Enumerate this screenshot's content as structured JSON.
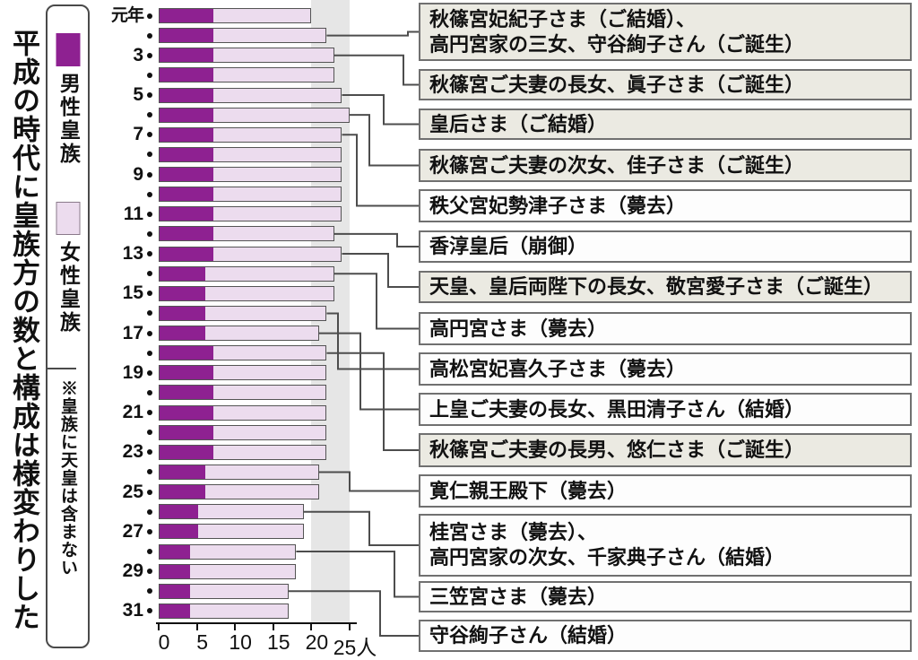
{
  "title": "平成の時代に皇族方の数と構成は様変わりした",
  "legend": {
    "male_label": "男性皇族",
    "female_label": "女性皇族",
    "note": "※皇族に天皇は含まない"
  },
  "colors": {
    "male": "#8e2191",
    "female": "#ecdcee",
    "band": "#e6e6e6",
    "box_tint": "#ebeae2",
    "box_white": "#fdfdfd",
    "connector": "#4d4d4d"
  },
  "chart_data": {
    "type": "bar",
    "orientation": "horizontal",
    "stacked": true,
    "title": "平成の時代に皇族方の数と構成は様変わりした",
    "unit": "人",
    "xlim": [
      0,
      25
    ],
    "x_ticks": [
      {
        "value": 0,
        "label": "0"
      },
      {
        "value": 5,
        "label": "5"
      },
      {
        "value": 10,
        "label": "10"
      },
      {
        "value": 15,
        "label": "15"
      },
      {
        "value": 20,
        "label": "20"
      },
      {
        "value": 25,
        "label": "25人"
      }
    ],
    "band": {
      "from": 20,
      "to": 25
    },
    "row_labels": [
      "元年",
      "",
      "3",
      "",
      "5",
      "",
      "7",
      "",
      "9",
      "",
      "11",
      "",
      "13",
      "",
      "15",
      "",
      "17",
      "",
      "19",
      "",
      "21",
      "",
      "23",
      "",
      "25",
      "",
      "27",
      "",
      "29",
      "",
      "31",
      ""
    ],
    "years": [
      1,
      2,
      3,
      4,
      5,
      6,
      7,
      8,
      9,
      10,
      11,
      12,
      13,
      14,
      15,
      16,
      17,
      18,
      19,
      20,
      21,
      22,
      23,
      24,
      25,
      26,
      27,
      28,
      29,
      30,
      31
    ],
    "series": [
      {
        "name": "男性皇族",
        "values": [
          7,
          7,
          7,
          7,
          7,
          7,
          7,
          7,
          7,
          7,
          7,
          7,
          7,
          6,
          6,
          6,
          6,
          7,
          7,
          7,
          7,
          7,
          7,
          6,
          6,
          5,
          5,
          4,
          4,
          4,
          4
        ]
      },
      {
        "name": "女性皇族",
        "values": [
          13,
          15,
          16,
          16,
          17,
          18,
          17,
          17,
          17,
          17,
          17,
          16,
          17,
          17,
          17,
          16,
          15,
          15,
          15,
          15,
          15,
          15,
          15,
          15,
          15,
          14,
          14,
          14,
          14,
          13,
          13
        ]
      }
    ]
  },
  "annotations": [
    {
      "year": 2,
      "tinted": true,
      "lines": [
        "秋篠宮妃紀子さま（ご結婚）、",
        "高円宮家の三女、守谷絢子さん（ご誕生）"
      ]
    },
    {
      "year": 3,
      "tinted": true,
      "lines": [
        "秋篠宮ご夫妻の長女、眞子さま（ご誕生）"
      ]
    },
    {
      "year": 5,
      "tinted": true,
      "lines": [
        "皇后さま（ご結婚）"
      ]
    },
    {
      "year": 6,
      "tinted": true,
      "lines": [
        "秋篠宮ご夫妻の次女、佳子さま（ご誕生）"
      ]
    },
    {
      "year": 7,
      "tinted": false,
      "lines": [
        "秩父宮妃勢津子さま（薨去）"
      ]
    },
    {
      "year": 12,
      "tinted": false,
      "lines": [
        "香淳皇后（崩御）"
      ]
    },
    {
      "year": 13,
      "tinted": true,
      "lines": [
        "天皇、皇后両陛下の長女、敬宮愛子さま（ご誕生）"
      ]
    },
    {
      "year": 14,
      "tinted": false,
      "lines": [
        "高円宮さま（薨去）"
      ]
    },
    {
      "year": 16,
      "tinted": false,
      "lines": [
        "高松宮妃喜久子さま（薨去）"
      ]
    },
    {
      "year": 17,
      "tinted": false,
      "lines": [
        "上皇ご夫妻の長女、黒田清子さん（結婚）"
      ]
    },
    {
      "year": 18,
      "tinted": true,
      "lines": [
        "秋篠宮ご夫妻の長男、悠仁さま（ご誕生）"
      ]
    },
    {
      "year": 24,
      "tinted": false,
      "lines": [
        "寛仁親王殿下（薨去）"
      ]
    },
    {
      "year": 26,
      "tinted": false,
      "lines": [
        "桂宮さま（薨去）、",
        "高円宮家の次女、千家典子さん（結婚）"
      ]
    },
    {
      "year": 28,
      "tinted": false,
      "lines": [
        "三笠宮さま（薨去）"
      ]
    },
    {
      "year": 30,
      "tinted": false,
      "lines": [
        "守谷絢子さん（結婚）"
      ]
    }
  ]
}
